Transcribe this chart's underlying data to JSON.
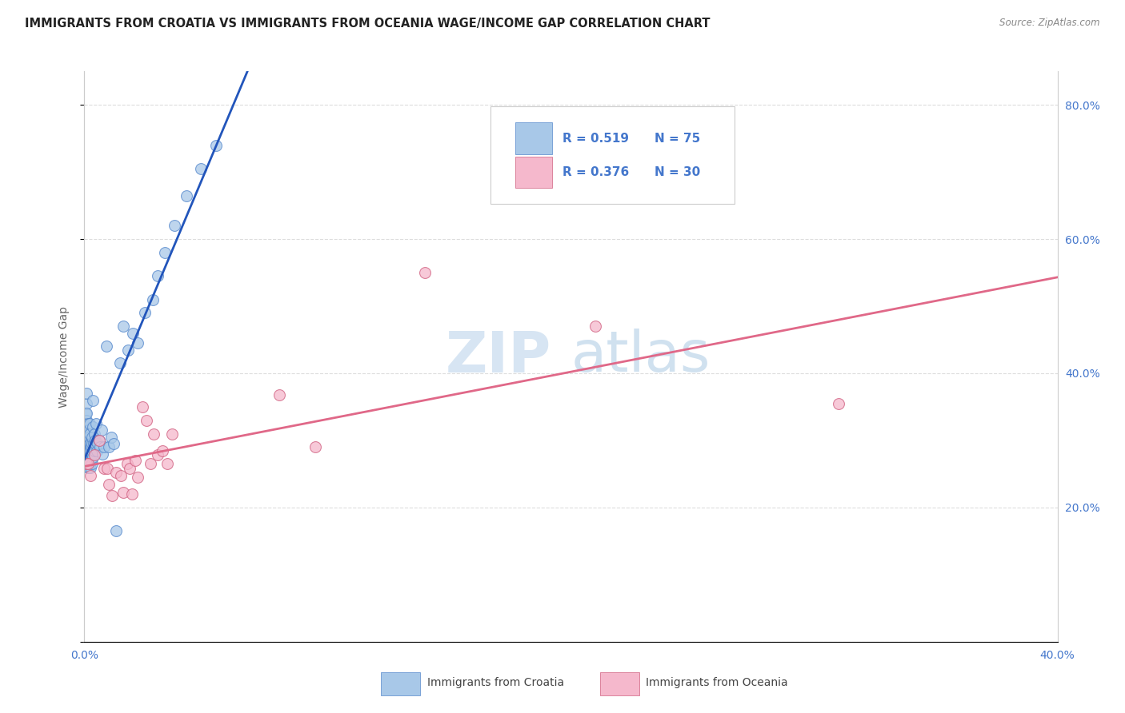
{
  "title": "IMMIGRANTS FROM CROATIA VS IMMIGRANTS FROM OCEANIA WAGE/INCOME GAP CORRELATION CHART",
  "source": "Source: ZipAtlas.com",
  "ylabel": "Wage/Income Gap",
  "watermark_zip": "ZIP",
  "watermark_atlas": "atlas",
  "background_color": "#ffffff",
  "croatia_color": "#a8c8e8",
  "oceania_color": "#f5b8cc",
  "croatia_line_color": "#2255bb",
  "oceania_line_color": "#e06888",
  "croatia_edge_color": "#5588cc",
  "oceania_edge_color": "#d06080",
  "legend_text_color": "#4477cc",
  "legend_border_color": "#cccccc",
  "croatia_R": "0.519",
  "croatia_N": "75",
  "oceania_R": "0.376",
  "oceania_N": "30",
  "axis_label_color": "#888888",
  "ylabel_color": "#666666",
  "title_color": "#222222",
  "source_color": "#888888",
  "grid_color": "#dddddd",
  "xlim": [
    0.0,
    0.4
  ],
  "ylim": [
    0.0,
    0.85
  ],
  "xtick_positions": [
    0.0,
    0.05,
    0.1,
    0.15,
    0.2,
    0.25,
    0.3,
    0.35,
    0.4
  ],
  "ytick_right_positions": [
    0.2,
    0.4,
    0.6,
    0.8
  ],
  "ytick_right_labels": [
    "20.0%",
    "40.0%",
    "60.0%",
    "80.0%"
  ],
  "croatia_scatter_x": [
    0.0003,
    0.0005,
    0.0005,
    0.0007,
    0.0008,
    0.0008,
    0.0009,
    0.001,
    0.001,
    0.001,
    0.0012,
    0.0012,
    0.0013,
    0.0013,
    0.0014,
    0.0015,
    0.0015,
    0.0016,
    0.0016,
    0.0017,
    0.0018,
    0.0018,
    0.0019,
    0.0019,
    0.002,
    0.002,
    0.002,
    0.0021,
    0.0022,
    0.0022,
    0.0023,
    0.0024,
    0.0025,
    0.0025,
    0.0026,
    0.0027,
    0.0028,
    0.003,
    0.003,
    0.0032,
    0.0033,
    0.0034,
    0.0035,
    0.0036,
    0.0038,
    0.004,
    0.0042,
    0.0044,
    0.0046,
    0.0048,
    0.005,
    0.0055,
    0.006,
    0.0065,
    0.007,
    0.0075,
    0.008,
    0.009,
    0.01,
    0.011,
    0.012,
    0.013,
    0.0145,
    0.016,
    0.018,
    0.02,
    0.022,
    0.025,
    0.028,
    0.03,
    0.033,
    0.037,
    0.042,
    0.048,
    0.054
  ],
  "croatia_scatter_y": [
    0.305,
    0.34,
    0.31,
    0.295,
    0.33,
    0.355,
    0.27,
    0.3,
    0.34,
    0.37,
    0.28,
    0.315,
    0.265,
    0.295,
    0.325,
    0.275,
    0.31,
    0.26,
    0.29,
    0.315,
    0.275,
    0.305,
    0.26,
    0.285,
    0.265,
    0.295,
    0.325,
    0.27,
    0.285,
    0.31,
    0.27,
    0.29,
    0.26,
    0.285,
    0.295,
    0.27,
    0.29,
    0.265,
    0.295,
    0.28,
    0.305,
    0.32,
    0.36,
    0.275,
    0.295,
    0.31,
    0.285,
    0.295,
    0.3,
    0.325,
    0.285,
    0.295,
    0.3,
    0.29,
    0.315,
    0.28,
    0.29,
    0.44,
    0.29,
    0.305,
    0.295,
    0.165,
    0.415,
    0.47,
    0.435,
    0.46,
    0.445,
    0.49,
    0.51,
    0.545,
    0.58,
    0.62,
    0.665,
    0.705,
    0.74
  ],
  "oceania_scatter_x": [
    0.0008,
    0.0015,
    0.0025,
    0.004,
    0.006,
    0.008,
    0.0095,
    0.01,
    0.0115,
    0.013,
    0.015,
    0.016,
    0.0175,
    0.0185,
    0.0195,
    0.021,
    0.022,
    0.024,
    0.0255,
    0.027,
    0.0285,
    0.03,
    0.032,
    0.034,
    0.036,
    0.08,
    0.095,
    0.14,
    0.21,
    0.31
  ],
  "oceania_scatter_y": [
    0.265,
    0.265,
    0.248,
    0.278,
    0.3,
    0.258,
    0.258,
    0.235,
    0.218,
    0.252,
    0.248,
    0.222,
    0.265,
    0.258,
    0.22,
    0.27,
    0.245,
    0.35,
    0.33,
    0.265,
    0.31,
    0.278,
    0.285,
    0.265,
    0.31,
    0.368,
    0.29,
    0.55,
    0.47,
    0.355
  ]
}
